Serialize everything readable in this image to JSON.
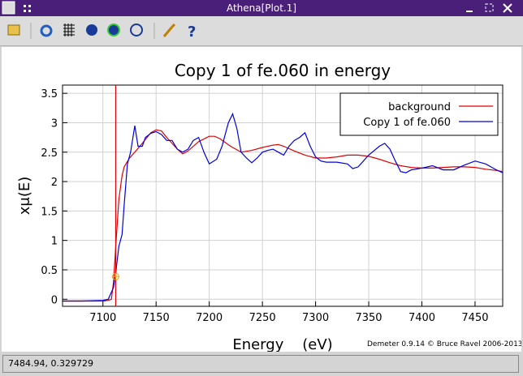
{
  "window": {
    "title": "Athena[Plot.1]",
    "status": "7484.94, 0.329729"
  },
  "chart_data": {
    "type": "line",
    "title": "Copy 1 of fe.060 in energy",
    "x_label": "Energy    (eV)",
    "y_label": "xμ(E)",
    "annotation": "Demeter 0.9.14 © Bruce Ravel 2006-2013",
    "xlim": [
      7062,
      7476
    ],
    "ylim": [
      -0.12,
      3.64
    ],
    "xticks": [
      7100,
      7150,
      7200,
      7250,
      7300,
      7350,
      7400,
      7450
    ],
    "yticks": [
      0,
      0.5,
      1,
      1.5,
      2,
      2.5,
      3,
      3.5
    ],
    "grid": true,
    "legend": "upper right",
    "e0": 7112,
    "marker": {
      "x": 7112,
      "y": 0.386,
      "color": "#e8a020"
    },
    "e0_color": "#e00000",
    "series": [
      {
        "name": "background",
        "color": "#e00000",
        "x": [
          7062,
          7100,
          7105,
          7108,
          7110,
          7112,
          7115,
          7118,
          7120,
          7125,
          7130,
          7137,
          7145,
          7150,
          7155,
          7160,
          7170,
          7175,
          7180,
          7190,
          7200,
          7205,
          7210,
          7220,
          7230,
          7240,
          7250,
          7260,
          7265,
          7270,
          7280,
          7290,
          7300,
          7310,
          7320,
          7330,
          7340,
          7350,
          7360,
          7370,
          7380,
          7390,
          7400,
          7410,
          7420,
          7430,
          7440,
          7450,
          7460,
          7470,
          7476
        ],
        "values": [
          -0.03,
          -0.03,
          -0.02,
          0.0,
          0.3,
          0.9,
          1.7,
          2.1,
          2.25,
          2.4,
          2.5,
          2.65,
          2.83,
          2.88,
          2.86,
          2.75,
          2.55,
          2.47,
          2.52,
          2.68,
          2.77,
          2.77,
          2.73,
          2.6,
          2.5,
          2.53,
          2.58,
          2.62,
          2.63,
          2.6,
          2.52,
          2.45,
          2.4,
          2.4,
          2.42,
          2.45,
          2.45,
          2.43,
          2.38,
          2.32,
          2.27,
          2.24,
          2.23,
          2.23,
          2.24,
          2.25,
          2.25,
          2.24,
          2.21,
          2.19,
          2.17
        ]
      },
      {
        "name": "Copy 1 of fe.060",
        "color": "#0000e0",
        "x": [
          7062,
          7080,
          7100,
          7105,
          7110,
          7112,
          7115,
          7118,
          7120,
          7123,
          7126,
          7130,
          7133,
          7137,
          7140,
          7145,
          7150,
          7155,
          7160,
          7165,
          7170,
          7175,
          7180,
          7185,
          7190,
          7195,
          7200,
          7207,
          7212,
          7218,
          7222,
          7226,
          7230,
          7235,
          7240,
          7245,
          7250,
          7255,
          7260,
          7265,
          7270,
          7275,
          7280,
          7285,
          7290,
          7295,
          7300,
          7305,
          7310,
          7320,
          7330,
          7335,
          7340,
          7345,
          7350,
          7360,
          7365,
          7370,
          7375,
          7380,
          7385,
          7390,
          7400,
          7410,
          7420,
          7430,
          7440,
          7450,
          7460,
          7470,
          7476
        ],
        "values": [
          -0.03,
          -0.03,
          -0.02,
          0.0,
          0.2,
          0.45,
          0.9,
          1.1,
          1.6,
          2.3,
          2.5,
          2.95,
          2.6,
          2.6,
          2.75,
          2.82,
          2.85,
          2.8,
          2.7,
          2.7,
          2.55,
          2.5,
          2.55,
          2.7,
          2.75,
          2.5,
          2.3,
          2.38,
          2.6,
          3.0,
          3.15,
          2.9,
          2.5,
          2.4,
          2.32,
          2.4,
          2.5,
          2.53,
          2.55,
          2.5,
          2.45,
          2.6,
          2.7,
          2.75,
          2.83,
          2.6,
          2.42,
          2.35,
          2.33,
          2.33,
          2.3,
          2.22,
          2.25,
          2.35,
          2.45,
          2.6,
          2.65,
          2.55,
          2.35,
          2.17,
          2.15,
          2.2,
          2.23,
          2.27,
          2.2,
          2.2,
          2.28,
          2.35,
          2.3,
          2.2,
          2.15
        ]
      }
    ]
  }
}
